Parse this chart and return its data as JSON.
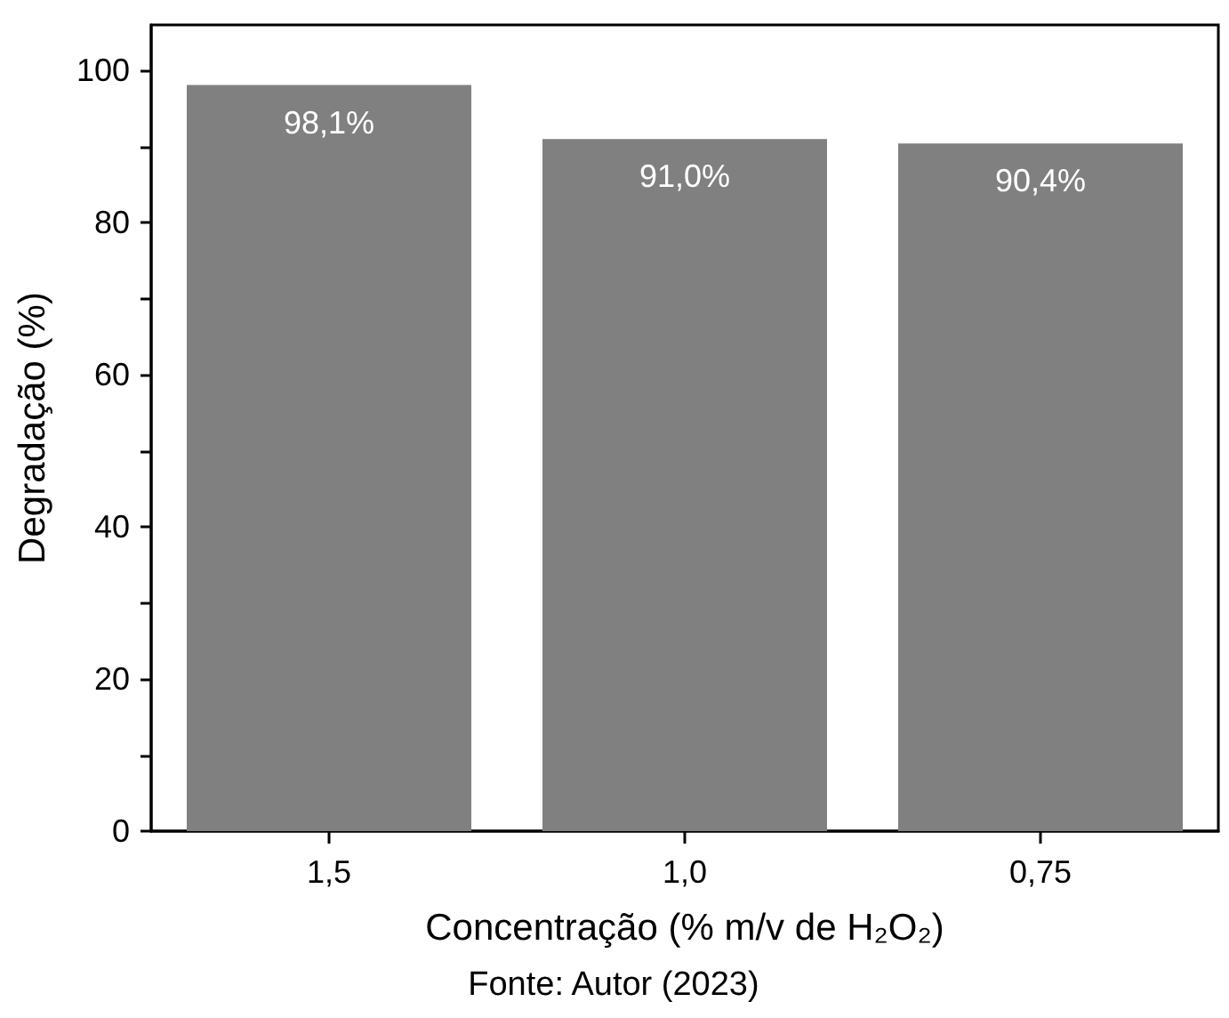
{
  "chart_data": {
    "type": "bar",
    "categories": [
      "1,5",
      "1,0",
      "0,75"
    ],
    "values": [
      98.1,
      91.0,
      90.4
    ],
    "value_labels": [
      "98,1%",
      "91,0%",
      "90,4%"
    ],
    "color": "#808080",
    "xlabel": "Concentração (% m/v de H₂O₂)",
    "ylabel": "Degradação (%)",
    "annotations": [
      "Fonte: Autor (2023)"
    ],
    "ylim": [
      0,
      106
    ],
    "yticks": [
      0,
      20,
      40,
      60,
      80,
      100
    ],
    "grid": false
  }
}
